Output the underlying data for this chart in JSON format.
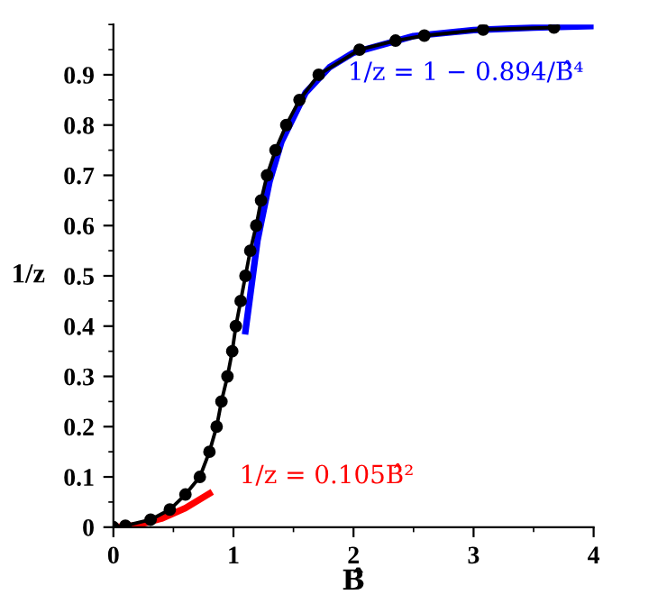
{
  "chart_data": {
    "type": "line",
    "xlabel": "B̂",
    "ylabel": "1/z",
    "xlim": [
      0,
      4
    ],
    "ylim": [
      0,
      1.0
    ],
    "xticks": [
      0,
      1,
      2,
      3,
      4
    ],
    "yticks": [
      0,
      0.1,
      0.2,
      0.3,
      0.4,
      0.5,
      0.6,
      0.7,
      0.8,
      0.9
    ],
    "grid": false,
    "legend": false,
    "series": [
      {
        "color": "#0000ff",
        "marker": "none",
        "x": [
          1.1,
          1.2,
          1.3,
          1.4,
          1.6,
          1.8,
          2.0,
          2.5,
          3.0,
          3.5,
          4.0
        ],
        "values": [
          0.39,
          0.57,
          0.687,
          0.767,
          0.864,
          0.915,
          0.944,
          0.977,
          0.989,
          0.994,
          0.997
        ]
      },
      {
        "color": "#ff0000",
        "marker": "none",
        "x": [
          0,
          0.2,
          0.4,
          0.6,
          0.8
        ],
        "values": [
          0,
          0.004,
          0.017,
          0.038,
          0.067
        ]
      },
      {
        "color": "#000000",
        "marker": "circle",
        "x": [
          0,
          0.1,
          0.31,
          0.47,
          0.6,
          0.72,
          0.8,
          0.86,
          0.9,
          0.95,
          0.99,
          1.02,
          1.06,
          1.1,
          1.14,
          1.19,
          1.23,
          1.28,
          1.35,
          1.44,
          1.55,
          1.71,
          2.05,
          2.35,
          2.59,
          3.08,
          3.67
        ],
        "values": [
          0,
          0.003,
          0.015,
          0.035,
          0.065,
          0.1,
          0.15,
          0.2,
          0.25,
          0.3,
          0.35,
          0.4,
          0.45,
          0.5,
          0.55,
          0.6,
          0.65,
          0.7,
          0.75,
          0.8,
          0.85,
          0.9,
          0.95,
          0.968,
          0.978,
          0.99,
          0.994
        ]
      }
    ],
    "annotations": [
      {
        "text": "1/z = 1 − 0.894/B̂⁴",
        "x": 4.0,
        "y": 0.997
      },
      {
        "text": "1/z = 0.105B̂²",
        "x": 0.8,
        "y": 0.067
      }
    ]
  }
}
